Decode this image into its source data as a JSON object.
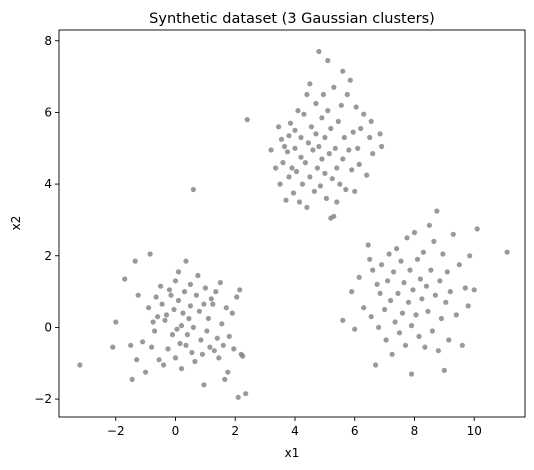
{
  "chart_data": {
    "type": "scatter",
    "title": "Synthetic dataset (3 Gaussian clusters)",
    "xlabel": "x1",
    "ylabel": "x2",
    "xlim": [
      -3.9,
      11.7
    ],
    "ylim": [
      -2.5,
      8.3
    ],
    "xticks": [
      -2,
      0,
      2,
      4,
      6,
      8,
      10
    ],
    "yticks": [
      -2,
      0,
      2,
      4,
      6,
      8
    ],
    "xtick_labels": [
      "−2",
      "0",
      "2",
      "4",
      "6",
      "8",
      "10"
    ],
    "ytick_labels": [
      "−2",
      "0",
      "2",
      "4",
      "6",
      "8"
    ],
    "grid": false,
    "point_color": "#808080",
    "series": [
      {
        "points": [
          [
            -3.2,
            -1.05
          ],
          [
            -2.1,
            -0.55
          ],
          [
            -2.0,
            0.15
          ],
          [
            -1.7,
            1.35
          ],
          [
            -1.5,
            -0.5
          ],
          [
            -1.45,
            -1.45
          ],
          [
            -1.35,
            1.85
          ],
          [
            -1.3,
            -0.9
          ],
          [
            -1.25,
            0.9
          ],
          [
            -1.1,
            -0.4
          ],
          [
            -1.0,
            -1.25
          ],
          [
            -0.9,
            0.55
          ],
          [
            -0.85,
            2.05
          ],
          [
            -0.8,
            -0.55
          ],
          [
            -0.75,
            0.15
          ],
          [
            -0.7,
            -0.1
          ],
          [
            -0.65,
            0.85
          ],
          [
            -0.6,
            0.3
          ],
          [
            -0.55,
            -0.9
          ],
          [
            -0.5,
            1.15
          ],
          [
            -0.45,
            0.65
          ],
          [
            -0.4,
            -1.05
          ],
          [
            -0.35,
            0.2
          ],
          [
            -0.3,
            0.35
          ],
          [
            -0.25,
            -0.6
          ],
          [
            -0.2,
            1.05
          ],
          [
            -0.15,
            0.9
          ],
          [
            -0.1,
            -0.2
          ],
          [
            -0.05,
            0.5
          ],
          [
            0.0,
            1.3
          ],
          [
            0.0,
            -0.85
          ],
          [
            0.05,
            -0.05
          ],
          [
            0.1,
            0.75
          ],
          [
            0.1,
            1.55
          ],
          [
            0.15,
            -0.45
          ],
          [
            0.2,
            0.05
          ],
          [
            0.2,
            -1.15
          ],
          [
            0.25,
            0.4
          ],
          [
            0.3,
            1.0
          ],
          [
            0.35,
            -0.5
          ],
          [
            0.35,
            1.85
          ],
          [
            0.4,
            -0.2
          ],
          [
            0.45,
            0.25
          ],
          [
            0.5,
            1.2
          ],
          [
            0.5,
            0.6
          ],
          [
            0.55,
            -0.7
          ],
          [
            0.6,
            3.85
          ],
          [
            0.6,
            0.0
          ],
          [
            0.65,
            -0.95
          ],
          [
            0.7,
            0.9
          ],
          [
            0.75,
            1.45
          ],
          [
            0.8,
            0.45
          ],
          [
            0.85,
            -0.35
          ],
          [
            0.9,
            -0.75
          ],
          [
            0.95,
            0.65
          ],
          [
            0.95,
            -1.6
          ],
          [
            1.0,
            1.1
          ],
          [
            1.05,
            -0.1
          ],
          [
            1.1,
            0.25
          ],
          [
            1.15,
            -0.55
          ],
          [
            1.2,
            0.8
          ],
          [
            1.25,
            0.65
          ],
          [
            1.3,
            -0.65
          ],
          [
            1.35,
            1.0
          ],
          [
            1.4,
            -0.3
          ],
          [
            1.45,
            -0.85
          ],
          [
            1.5,
            1.25
          ],
          [
            1.55,
            0.1
          ],
          [
            1.6,
            -0.5
          ],
          [
            1.65,
            -1.45
          ],
          [
            1.7,
            0.55
          ],
          [
            1.75,
            -1.25
          ],
          [
            1.8,
            -0.25
          ],
          [
            1.9,
            0.4
          ],
          [
            1.95,
            -0.6
          ],
          [
            2.05,
            0.85
          ],
          [
            2.1,
            -1.95
          ],
          [
            2.15,
            1.05
          ],
          [
            2.2,
            -0.75
          ],
          [
            2.25,
            -0.8
          ],
          [
            2.35,
            -1.85
          ],
          [
            2.4,
            5.8
          ],
          [
            3.2,
            4.95
          ],
          [
            3.35,
            4.45
          ],
          [
            3.45,
            5.6
          ],
          [
            3.5,
            4.0
          ],
          [
            3.55,
            5.25
          ],
          [
            3.6,
            4.6
          ],
          [
            3.65,
            5.05
          ],
          [
            3.7,
            3.55
          ],
          [
            3.75,
            4.9
          ],
          [
            3.8,
            5.35
          ],
          [
            3.8,
            4.2
          ],
          [
            3.85,
            5.7
          ],
          [
            3.9,
            4.45
          ],
          [
            3.95,
            3.75
          ],
          [
            4.0,
            5.5
          ],
          [
            4.0,
            5.0
          ],
          [
            4.05,
            4.35
          ],
          [
            4.1,
            6.05
          ],
          [
            4.15,
            3.5
          ],
          [
            4.2,
            4.75
          ],
          [
            4.2,
            5.3
          ],
          [
            4.25,
            4.0
          ],
          [
            4.3,
            5.95
          ],
          [
            4.35,
            4.6
          ],
          [
            4.4,
            3.35
          ],
          [
            4.4,
            6.5
          ],
          [
            4.45,
            5.15
          ],
          [
            4.5,
            4.2
          ],
          [
            4.5,
            6.8
          ],
          [
            4.55,
            5.6
          ],
          [
            4.6,
            4.95
          ],
          [
            4.65,
            3.8
          ],
          [
            4.7,
            5.4
          ],
          [
            4.7,
            6.25
          ],
          [
            4.75,
            4.45
          ],
          [
            4.8,
            7.7
          ],
          [
            4.8,
            5.05
          ],
          [
            4.85,
            3.95
          ],
          [
            4.9,
            5.85
          ],
          [
            4.9,
            4.7
          ],
          [
            4.95,
            6.5
          ],
          [
            5.0,
            4.3
          ],
          [
            5.0,
            5.3
          ],
          [
            5.05,
            3.6
          ],
          [
            5.1,
            7.45
          ],
          [
            5.1,
            6.05
          ],
          [
            5.15,
            4.85
          ],
          [
            5.2,
            3.05
          ],
          [
            5.2,
            5.55
          ],
          [
            5.25,
            4.15
          ],
          [
            5.3,
            6.7
          ],
          [
            5.3,
            3.1
          ],
          [
            5.35,
            5.0
          ],
          [
            5.4,
            4.45
          ],
          [
            5.4,
            3.5
          ],
          [
            5.45,
            5.75
          ],
          [
            5.5,
            4.0
          ],
          [
            5.55,
            6.2
          ],
          [
            5.6,
            7.15
          ],
          [
            5.6,
            4.7
          ],
          [
            5.65,
            5.3
          ],
          [
            5.7,
            3.85
          ],
          [
            5.75,
            6.5
          ],
          [
            5.8,
            4.95
          ],
          [
            5.85,
            6.9
          ],
          [
            5.9,
            4.4
          ],
          [
            5.95,
            5.45
          ],
          [
            6.0,
            3.8
          ],
          [
            6.05,
            6.15
          ],
          [
            6.1,
            5.0
          ],
          [
            6.15,
            4.55
          ],
          [
            6.2,
            5.55
          ],
          [
            6.3,
            5.95
          ],
          [
            6.4,
            4.25
          ],
          [
            6.5,
            5.3
          ],
          [
            6.55,
            5.75
          ],
          [
            6.6,
            4.85
          ],
          [
            6.85,
            5.4
          ],
          [
            6.9,
            5.05
          ],
          [
            5.6,
            0.2
          ],
          [
            5.9,
            1.0
          ],
          [
            6.0,
            -0.05
          ],
          [
            6.15,
            1.4
          ],
          [
            6.3,
            0.55
          ],
          [
            6.45,
            2.3
          ],
          [
            6.5,
            1.9
          ],
          [
            6.55,
            0.3
          ],
          [
            6.6,
            1.6
          ],
          [
            6.7,
            -1.05
          ],
          [
            6.75,
            1.2
          ],
          [
            6.8,
            0.0
          ],
          [
            6.85,
            0.95
          ],
          [
            6.9,
            1.75
          ],
          [
            7.0,
            0.5
          ],
          [
            7.05,
            -0.35
          ],
          [
            7.1,
            1.3
          ],
          [
            7.15,
            2.05
          ],
          [
            7.2,
            0.75
          ],
          [
            7.25,
            -0.75
          ],
          [
            7.3,
            1.55
          ],
          [
            7.35,
            0.15
          ],
          [
            7.4,
            2.2
          ],
          [
            7.45,
            0.95
          ],
          [
            7.5,
            -0.15
          ],
          [
            7.55,
            1.85
          ],
          [
            7.6,
            0.4
          ],
          [
            7.65,
            1.25
          ],
          [
            7.7,
            -0.5
          ],
          [
            7.75,
            2.5
          ],
          [
            7.8,
            0.7
          ],
          [
            7.85,
            1.6
          ],
          [
            7.9,
            -1.3
          ],
          [
            7.9,
            0.05
          ],
          [
            7.95,
            1.05
          ],
          [
            8.0,
            2.65
          ],
          [
            8.05,
            0.35
          ],
          [
            8.1,
            1.9
          ],
          [
            8.15,
            -0.25
          ],
          [
            8.2,
            1.35
          ],
          [
            8.25,
            0.8
          ],
          [
            8.3,
            2.1
          ],
          [
            8.35,
            -0.55
          ],
          [
            8.4,
            1.15
          ],
          [
            8.45,
            0.45
          ],
          [
            8.5,
            2.85
          ],
          [
            8.55,
            1.6
          ],
          [
            8.6,
            -0.1
          ],
          [
            8.65,
            2.4
          ],
          [
            8.7,
            0.9
          ],
          [
            8.75,
            3.25
          ],
          [
            8.8,
            -0.65
          ],
          [
            8.85,
            1.3
          ],
          [
            8.9,
            0.25
          ],
          [
            8.95,
            2.05
          ],
          [
            9.0,
            -1.2
          ],
          [
            9.05,
            0.7
          ],
          [
            9.1,
            1.55
          ],
          [
            9.15,
            -0.35
          ],
          [
            9.2,
            1.0
          ],
          [
            9.3,
            2.6
          ],
          [
            9.4,
            0.35
          ],
          [
            9.5,
            1.75
          ],
          [
            9.6,
            -0.5
          ],
          [
            9.7,
            1.1
          ],
          [
            9.8,
            0.6
          ],
          [
            9.85,
            2.0
          ],
          [
            10.0,
            1.05
          ],
          [
            10.1,
            2.75
          ],
          [
            11.1,
            2.1
          ]
        ]
      }
    ]
  }
}
